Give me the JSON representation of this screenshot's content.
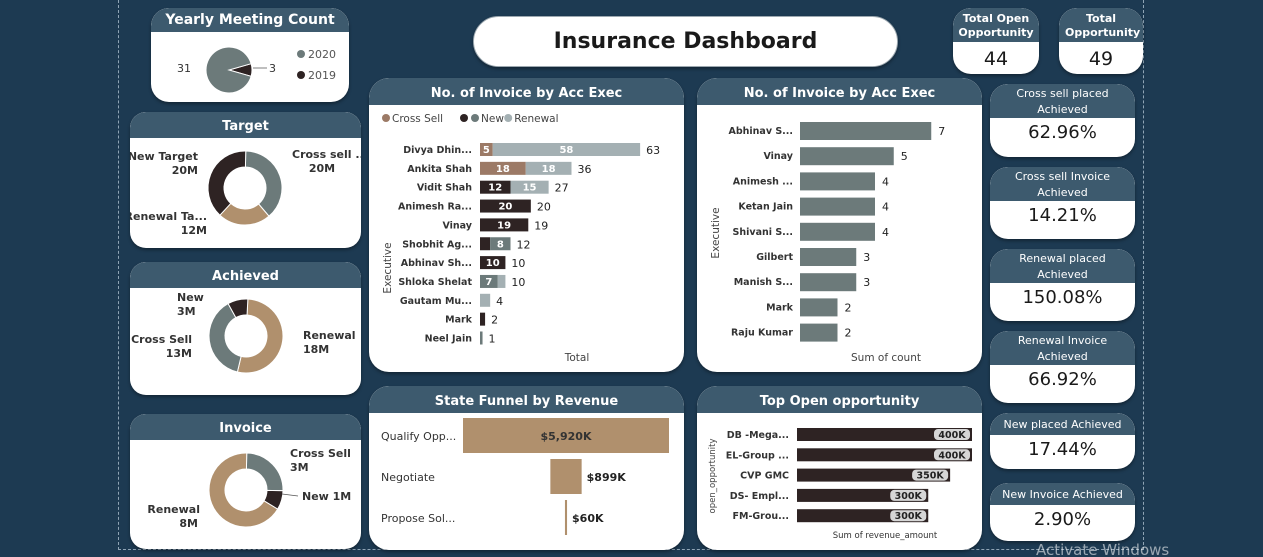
{
  "header": {
    "title": "Insurance Dashboard"
  },
  "totals": [
    {
      "label": "Total Open Opportunity",
      "value": "44"
    },
    {
      "label": "Total Opportunity",
      "value": "49"
    }
  ],
  "kpis": [
    {
      "label": "Cross sell placed Achieved",
      "value": "62.96%"
    },
    {
      "label": "Cross sell Invoice Achieved",
      "value": "14.21%"
    },
    {
      "label": "Renewal placed Achieved",
      "value": "150.08%"
    },
    {
      "label": "Renewal Invoice Achieved",
      "value": "66.92%"
    },
    {
      "label": "New placed Achieved",
      "value": "17.44%"
    },
    {
      "label": "New Invoice Achieved",
      "value": "2.90%"
    }
  ],
  "colors": {
    "cross_sell": "#9c7a66",
    "renewal": "#b59578",
    "new": "#2e2323",
    "new_bar": "#6c7a7a",
    "renewal_bar": "#a4b0b3",
    "dark": "#2e2323",
    "grey": "#6c7a7a",
    "tan": "#b0906d",
    "background": "#1d3a52",
    "header": "#3d5a6e"
  },
  "watermark": "Activate Windows",
  "chart_data": [
    {
      "id": "yearly",
      "type": "pie",
      "title": "Yearly Meeting Count",
      "categories": [
        "2020",
        "2019"
      ],
      "values": [
        31,
        3
      ],
      "colors": [
        "#6c7a7a",
        "#2e2323"
      ],
      "legend": "right"
    },
    {
      "id": "target",
      "type": "pie",
      "title": "Target",
      "slices": [
        {
          "label": "Cross sell ...",
          "display": "20M",
          "value": 20,
          "color": "#6c7a7a"
        },
        {
          "label": "Renewal Ta...",
          "display": "12M",
          "value": 12,
          "color": "#b0906d"
        },
        {
          "label": "New Target",
          "display": "20M",
          "value": 20,
          "color": "#2e2323"
        }
      ]
    },
    {
      "id": "achieved",
      "type": "pie",
      "title": "Achieved",
      "slices": [
        {
          "label": "Renewal",
          "display": "18M",
          "value": 18,
          "color": "#b0906d"
        },
        {
          "label": "Cross Sell",
          "display": "13M",
          "value": 13,
          "color": "#6c7a7a"
        },
        {
          "label": "New",
          "display": "3M",
          "value": 3,
          "color": "#2e2323"
        }
      ]
    },
    {
      "id": "invoice",
      "type": "pie",
      "title": "Invoice",
      "slices": [
        {
          "label": "Cross Sell",
          "display": "3M",
          "value": 3,
          "color": "#6c7a7a"
        },
        {
          "label": "New",
          "display": "1M",
          "value": 1,
          "color": "#2e2323"
        },
        {
          "label": "Renewal",
          "display": "8M",
          "value": 8,
          "color": "#b0906d"
        }
      ]
    },
    {
      "id": "invoice_type",
      "type": "bar",
      "orientation": "horizontal",
      "stacked": true,
      "title": "No. of Invoice by Acc Exec",
      "ylabel": "Executive",
      "xlabel": "Total",
      "legend": "top-left",
      "categories": [
        "Divya Dhin...",
        "Ankita Shah",
        "Vidit Shah",
        "Animesh Ra...",
        "Vinay",
        "Shobhit Ag...",
        "Abhinav Sh...",
        "Shloka Shelat",
        "Gautam Mu...",
        "Mark",
        "Neel Jain"
      ],
      "series": [
        {
          "name": "Cross Sell",
          "color": "#9c7a66",
          "values": [
            5,
            18,
            0,
            0,
            0,
            0,
            0,
            0,
            0,
            0,
            0
          ]
        },
        {
          "name": "",
          "color": "#2e2323",
          "values": [
            0,
            0,
            12,
            20,
            19,
            4,
            10,
            0,
            0,
            2,
            0
          ]
        },
        {
          "name": "New",
          "color": "#6c7a7a",
          "values": [
            0,
            0,
            0,
            0,
            0,
            8,
            0,
            7,
            0,
            0,
            1
          ]
        },
        {
          "name": "Renewal",
          "color": "#a4b0b3",
          "values": [
            58,
            18,
            15,
            0,
            0,
            0,
            0,
            3,
            4,
            0,
            0
          ]
        }
      ],
      "totals": [
        63,
        36,
        27,
        20,
        19,
        12,
        10,
        10,
        4,
        2,
        1
      ],
      "xlim": [
        0,
        72
      ]
    },
    {
      "id": "invoice_count",
      "type": "bar",
      "orientation": "horizontal",
      "title": "No. of Invoice by Acc Exec",
      "ylabel": "Executive",
      "xlabel": "Sum of count",
      "categories": [
        "Abhinav S...",
        "Vinay",
        "Animesh ...",
        "Ketan Jain",
        "Shivani S...",
        "Gilbert",
        "Manish S...",
        "Mark",
        "Raju Kumar"
      ],
      "values": [
        7,
        5,
        4,
        4,
        4,
        3,
        3,
        2,
        2
      ],
      "xlim": [
        0,
        8
      ]
    },
    {
      "id": "funnel",
      "type": "bar",
      "orientation": "funnel",
      "title": "State Funnel by Revenue",
      "categories": [
        "Qualify Opp...",
        "Negotiate",
        "Propose Sol..."
      ],
      "values": [
        5920,
        899,
        60
      ],
      "labels": [
        "$5,920K",
        "$899K",
        "$60K"
      ]
    },
    {
      "id": "open_opp",
      "type": "bar",
      "orientation": "horizontal",
      "title": "Top Open opportunity",
      "ylabel": "open_opportunity",
      "xlabel": "Sum of revenue_amount",
      "categories": [
        "DB -Mega...",
        "EL-Group ...",
        "CVP GMC",
        "DS- Empl...",
        "FM-Grou..."
      ],
      "values": [
        400,
        400,
        350,
        300,
        300
      ],
      "labels": [
        "400K",
        "400K",
        "350K",
        "300K",
        "300K"
      ],
      "xlim": [
        0,
        400
      ]
    }
  ]
}
